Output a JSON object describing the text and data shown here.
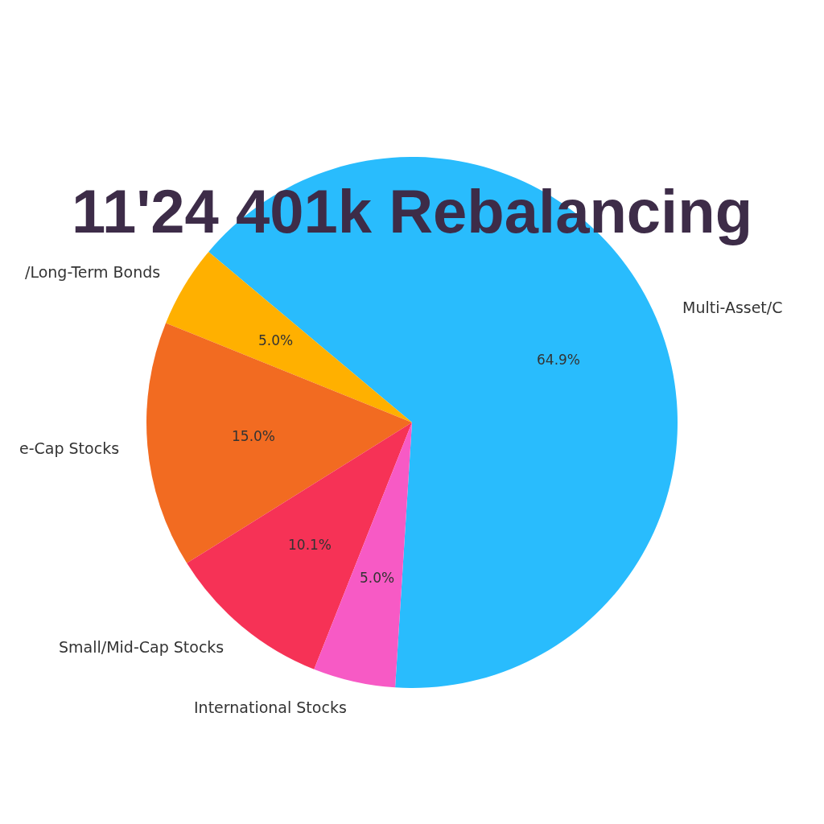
{
  "chart_data": {
    "type": "pie",
    "title": "11'24 401k Rebalancing",
    "categories": [
      "Multi-Asset/C",
      "/Long-Term Bonds",
      "e-Cap Stocks",
      "Small/Mid-Cap Stocks",
      "International Stocks"
    ],
    "values": [
      64.9,
      5.0,
      15.0,
      10.1,
      5.0
    ],
    "colors": [
      "#29bcfd",
      "#ffb000",
      "#f26b21",
      "#f63256",
      "#f75ac5"
    ],
    "value_labels": [
      "64.9%",
      "5.0%",
      "15.0%",
      "10.1%",
      "5.0%"
    ],
    "legend": false
  }
}
